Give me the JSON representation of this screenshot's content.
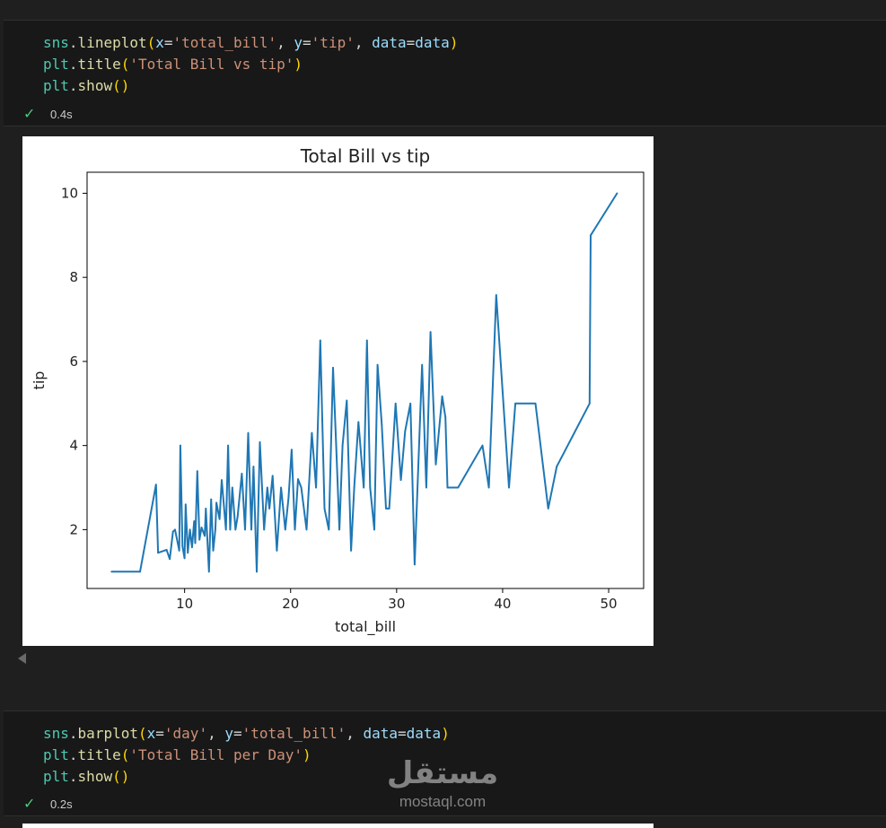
{
  "cells": [
    {
      "lines": [
        [
          [
            "tok-id",
            "sns"
          ],
          [
            "tok-plain",
            "."
          ],
          [
            "tok-fn",
            "lineplot"
          ],
          [
            "tok-par",
            "("
          ],
          [
            "tok-kw",
            "x"
          ],
          [
            "tok-plain",
            "="
          ],
          [
            "tok-str",
            "'total_bill'"
          ],
          [
            "tok-plain",
            ", "
          ],
          [
            "tok-kw",
            "y"
          ],
          [
            "tok-plain",
            "="
          ],
          [
            "tok-str",
            "'tip'"
          ],
          [
            "tok-plain",
            ", "
          ],
          [
            "tok-kw",
            "data"
          ],
          [
            "tok-plain",
            "="
          ],
          [
            "tok-kw",
            "data"
          ],
          [
            "tok-par",
            ")"
          ]
        ],
        [
          [
            "tok-id",
            "plt"
          ],
          [
            "tok-plain",
            "."
          ],
          [
            "tok-fn",
            "title"
          ],
          [
            "tok-par",
            "("
          ],
          [
            "tok-str",
            "'Total Bill vs tip'"
          ],
          [
            "tok-par",
            ")"
          ]
        ],
        [
          [
            "tok-id",
            "plt"
          ],
          [
            "tok-plain",
            "."
          ],
          [
            "tok-fn",
            "show"
          ],
          [
            "tok-par",
            "()"
          ]
        ]
      ],
      "status_time": "0.4s"
    },
    {
      "lines": [
        [
          [
            "tok-id",
            "sns"
          ],
          [
            "tok-plain",
            "."
          ],
          [
            "tok-fn",
            "barplot"
          ],
          [
            "tok-par",
            "("
          ],
          [
            "tok-kw",
            "x"
          ],
          [
            "tok-plain",
            "="
          ],
          [
            "tok-str",
            "'day'"
          ],
          [
            "tok-plain",
            ", "
          ],
          [
            "tok-kw",
            "y"
          ],
          [
            "tok-plain",
            "="
          ],
          [
            "tok-str",
            "'total_bill'"
          ],
          [
            "tok-plain",
            ", "
          ],
          [
            "tok-kw",
            "data"
          ],
          [
            "tok-plain",
            "="
          ],
          [
            "tok-kw",
            "data"
          ],
          [
            "tok-par",
            ")"
          ]
        ],
        [
          [
            "tok-id",
            "plt"
          ],
          [
            "tok-plain",
            "."
          ],
          [
            "tok-fn",
            "title"
          ],
          [
            "tok-par",
            "("
          ],
          [
            "tok-str",
            "'Total Bill per Day'"
          ],
          [
            "tok-par",
            ")"
          ]
        ],
        [
          [
            "tok-id",
            "plt"
          ],
          [
            "tok-plain",
            "."
          ],
          [
            "tok-fn",
            "show"
          ],
          [
            "tok-par",
            "()"
          ]
        ]
      ],
      "status_time": "0.2s"
    }
  ],
  "status_icon": "check-icon",
  "watermark": {
    "brand": "مستقل",
    "domain": "mostaql.com"
  },
  "chart_data": {
    "type": "line",
    "title": "Total Bill vs tip",
    "xlabel": "total_bill",
    "ylabel": "tip",
    "xlim": [
      0.8,
      53.3
    ],
    "ylim": [
      0.6,
      10.5
    ],
    "xticks": [
      10,
      20,
      30,
      40,
      50
    ],
    "yticks": [
      2,
      4,
      6,
      8,
      10
    ],
    "series_color": "#1f77b4",
    "x": [
      3.1,
      5.8,
      7.3,
      7.5,
      8.3,
      8.6,
      8.9,
      9.1,
      9.5,
      9.6,
      9.8,
      10.0,
      10.1,
      10.3,
      10.5,
      10.7,
      10.9,
      11.0,
      11.2,
      11.4,
      11.6,
      11.9,
      12.0,
      12.3,
      12.5,
      12.7,
      12.9,
      13.0,
      13.3,
      13.5,
      13.9,
      14.1,
      14.3,
      14.5,
      14.8,
      15.0,
      15.4,
      15.7,
      16.0,
      16.3,
      16.5,
      16.8,
      17.1,
      17.5,
      17.8,
      18.0,
      18.3,
      18.7,
      19.1,
      19.5,
      19.8,
      20.1,
      20.4,
      20.7,
      21.0,
      21.5,
      22.0,
      22.4,
      22.8,
      23.2,
      23.6,
      24.0,
      24.3,
      24.6,
      24.9,
      25.3,
      25.7,
      26.0,
      26.4,
      26.9,
      27.2,
      27.5,
      27.9,
      28.2,
      28.6,
      29.0,
      29.3,
      29.9,
      30.4,
      30.8,
      31.3,
      31.7,
      32.4,
      32.8,
      33.2,
      33.7,
      34.3,
      34.6,
      34.8,
      35.3,
      35.8,
      38.1,
      38.7,
      39.4,
      40.6,
      41.2,
      43.1,
      44.3,
      45.1,
      48.2,
      48.3,
      50.8
    ],
    "y": [
      1.0,
      1.0,
      3.07,
      1.45,
      1.52,
      1.3,
      1.95,
      2.0,
      1.5,
      4.0,
      1.6,
      1.32,
      2.6,
      1.45,
      2.0,
      1.58,
      2.2,
      1.68,
      3.39,
      1.76,
      2.05,
      1.85,
      2.5,
      1.0,
      2.72,
      1.5,
      2.0,
      2.64,
      2.25,
      3.18,
      2.0,
      4.0,
      2.0,
      3.0,
      2.0,
      2.31,
      3.33,
      2.0,
      4.3,
      2.0,
      3.5,
      1.0,
      4.08,
      2.0,
      3.0,
      2.5,
      3.28,
      1.5,
      3.0,
      2.0,
      2.75,
      3.9,
      2.0,
      3.2,
      3.0,
      2.0,
      4.3,
      3.0,
      6.5,
      2.5,
      2.0,
      5.85,
      4.0,
      2.0,
      4.0,
      5.07,
      1.5,
      3.0,
      4.56,
      3.0,
      6.5,
      3.0,
      2.0,
      5.92,
      4.5,
      2.5,
      2.5,
      5.0,
      3.18,
      4.34,
      5.0,
      1.17,
      5.92,
      3.0,
      6.7,
      3.55,
      5.17,
      4.67,
      3.0,
      3.0,
      3.0,
      4.0,
      3.0,
      7.58,
      3.0,
      5.0,
      5.0,
      2.5,
      3.5,
      5.0,
      9.0,
      10.0
    ]
  }
}
